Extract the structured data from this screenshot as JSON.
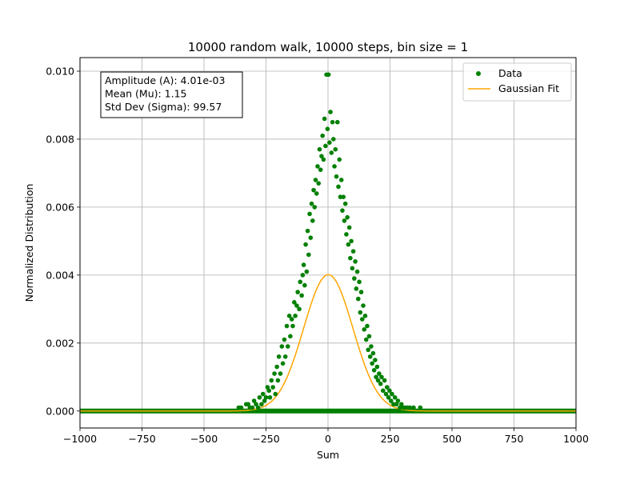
{
  "chart_data": {
    "type": "scatter",
    "title": "10000 random walk, 10000 steps, bin size = 1",
    "xlabel": "Sum",
    "ylabel": "Normalized Distribution",
    "xlim": [
      -1000,
      1000
    ],
    "ylim": [
      -0.0005,
      0.0104
    ],
    "x_ticks": [
      -1000,
      -750,
      -500,
      -250,
      0,
      250,
      500,
      750,
      1000
    ],
    "x_tick_labels": [
      "−1000",
      "−750",
      "−500",
      "−250",
      "0",
      "250",
      "500",
      "750",
      "1000"
    ],
    "y_ticks": [
      0,
      0.002,
      0.004,
      0.006,
      0.008,
      0.01
    ],
    "y_tick_labels": [
      "0.000",
      "0.002",
      "0.004",
      "0.006",
      "0.008",
      "0.010"
    ],
    "grid": true,
    "legend_position": "top-right",
    "colors": {
      "data": "#008000",
      "fit": "#ffa500"
    },
    "annotation": {
      "lines": [
        "Amplitude (A): 4.01e-03",
        "Mean (Mu): 1.15",
        "Std Dev (Sigma): 99.57"
      ]
    },
    "series": [
      {
        "name": "Data",
        "style": "points",
        "points": [
          [
            -360,
            0.0001
          ],
          [
            -350,
            0.0001
          ],
          [
            -330,
            0.0002
          ],
          [
            -322,
            0.0002
          ],
          [
            -315,
            0.0001
          ],
          [
            -305,
            0.0001
          ],
          [
            -298,
            0.0003
          ],
          [
            -290,
            0.0002
          ],
          [
            -282,
            0.0001
          ],
          [
            -276,
            0.0004
          ],
          [
            -268,
            0.0002
          ],
          [
            -262,
            0.0005
          ],
          [
            -256,
            0.0003
          ],
          [
            -250,
            0.0004
          ],
          [
            -244,
            0.0007
          ],
          [
            -238,
            0.0006
          ],
          [
            -234,
            0.0004
          ],
          [
            -228,
            0.0009
          ],
          [
            -222,
            0.0007
          ],
          [
            -216,
            0.0011
          ],
          [
            -212,
            0.0005
          ],
          [
            -206,
            0.0013
          ],
          [
            -202,
            0.0009
          ],
          [
            -198,
            0.0016
          ],
          [
            -192,
            0.0011
          ],
          [
            -186,
            0.0019
          ],
          [
            -182,
            0.0014
          ],
          [
            -176,
            0.0021
          ],
          [
            -172,
            0.0016
          ],
          [
            -166,
            0.0025
          ],
          [
            -162,
            0.0019
          ],
          [
            -156,
            0.0028
          ],
          [
            -152,
            0.0022
          ],
          [
            -146,
            0.0027
          ],
          [
            -142,
            0.0025
          ],
          [
            -136,
            0.0032
          ],
          [
            -132,
            0.0028
          ],
          [
            -126,
            0.0031
          ],
          [
            -122,
            0.0035
          ],
          [
            -116,
            0.003
          ],
          [
            -112,
            0.0038
          ],
          [
            -106,
            0.0034
          ],
          [
            -102,
            0.004
          ],
          [
            -98,
            0.0043
          ],
          [
            -94,
            0.0037
          ],
          [
            -90,
            0.0049
          ],
          [
            -86,
            0.0041
          ],
          [
            -82,
            0.0053
          ],
          [
            -78,
            0.0046
          ],
          [
            -74,
            0.0058
          ],
          [
            -70,
            0.0051
          ],
          [
            -66,
            0.0061
          ],
          [
            -62,
            0.0056
          ],
          [
            -58,
            0.0065
          ],
          [
            -54,
            0.006
          ],
          [
            -50,
            0.0068
          ],
          [
            -46,
            0.0064
          ],
          [
            -42,
            0.0072
          ],
          [
            -38,
            0.0067
          ],
          [
            -34,
            0.0077
          ],
          [
            -30,
            0.0071
          ],
          [
            -26,
            0.0075
          ],
          [
            -22,
            0.0081
          ],
          [
            -18,
            0.0074
          ],
          [
            -14,
            0.0086
          ],
          [
            -10,
            0.0078
          ],
          [
            -6,
            0.0099
          ],
          [
            -2,
            0.0083
          ],
          [
            2,
            0.0099
          ],
          [
            6,
            0.0079
          ],
          [
            10,
            0.0088
          ],
          [
            14,
            0.0076
          ],
          [
            18,
            0.0085
          ],
          [
            22,
            0.008
          ],
          [
            26,
            0.0072
          ],
          [
            30,
            0.0077
          ],
          [
            34,
            0.0069
          ],
          [
            38,
            0.0085
          ],
          [
            42,
            0.0066
          ],
          [
            46,
            0.0074
          ],
          [
            50,
            0.0063
          ],
          [
            54,
            0.0068
          ],
          [
            58,
            0.0059
          ],
          [
            62,
            0.0063
          ],
          [
            66,
            0.0056
          ],
          [
            70,
            0.0061
          ],
          [
            74,
            0.0052
          ],
          [
            78,
            0.0057
          ],
          [
            82,
            0.0049
          ],
          [
            86,
            0.0054
          ],
          [
            90,
            0.0045
          ],
          [
            94,
            0.005
          ],
          [
            98,
            0.0042
          ],
          [
            102,
            0.0047
          ],
          [
            106,
            0.0039
          ],
          [
            110,
            0.0044
          ],
          [
            114,
            0.0036
          ],
          [
            118,
            0.0041
          ],
          [
            122,
            0.0033
          ],
          [
            126,
            0.0038
          ],
          [
            130,
            0.0029
          ],
          [
            134,
            0.0035
          ],
          [
            138,
            0.0027
          ],
          [
            142,
            0.0031
          ],
          [
            146,
            0.0024
          ],
          [
            150,
            0.0028
          ],
          [
            154,
            0.0021
          ],
          [
            158,
            0.0025
          ],
          [
            162,
            0.0018
          ],
          [
            166,
            0.0022
          ],
          [
            170,
            0.0016
          ],
          [
            174,
            0.0019
          ],
          [
            178,
            0.0014
          ],
          [
            182,
            0.0017
          ],
          [
            186,
            0.0012
          ],
          [
            190,
            0.0015
          ],
          [
            194,
            0.001
          ],
          [
            198,
            0.0013
          ],
          [
            202,
            0.0009
          ],
          [
            206,
            0.0011
          ],
          [
            212,
            0.0008
          ],
          [
            216,
            0.001
          ],
          [
            222,
            0.0006
          ],
          [
            228,
            0.0009
          ],
          [
            234,
            0.0005
          ],
          [
            238,
            0.0007
          ],
          [
            244,
            0.0004
          ],
          [
            248,
            0.0006
          ],
          [
            254,
            0.0003
          ],
          [
            258,
            0.0005
          ],
          [
            264,
            0.0002
          ],
          [
            270,
            0.0004
          ],
          [
            276,
            0.0002
          ],
          [
            282,
            0.0003
          ],
          [
            290,
            0.0001
          ],
          [
            296,
            0.0002
          ],
          [
            304,
            0.0001
          ],
          [
            312,
            0.0001
          ],
          [
            320,
            0.0001
          ],
          [
            330,
            0.0001
          ],
          [
            345,
            0.0001
          ],
          [
            372,
            0.0001
          ]
        ]
      },
      {
        "name": "Gaussian Fit",
        "style": "line",
        "amplitude": 0.00401,
        "mean": 1.15,
        "sigma": 99.57
      }
    ]
  }
}
